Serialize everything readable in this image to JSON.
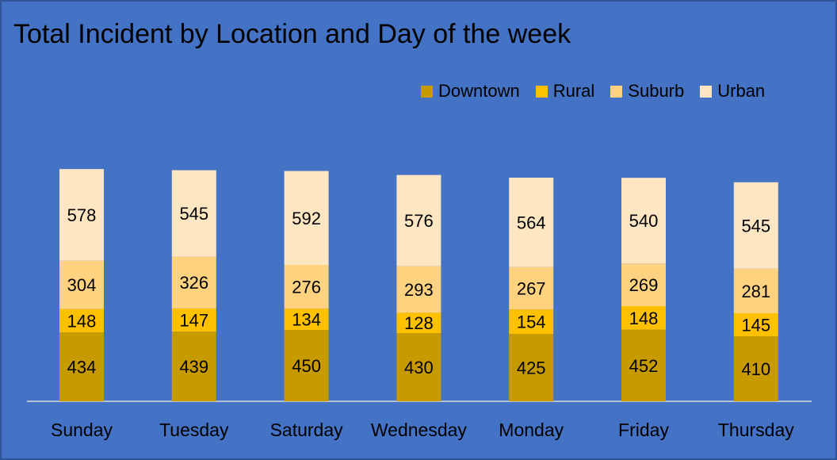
{
  "chart_data": {
    "type": "bar",
    "stacked": true,
    "title": "Total Incident by Location and Day of the week",
    "xlabel": "",
    "ylabel": "",
    "categories": [
      "Sunday",
      "Tuesday",
      "Saturday",
      "Wednesday",
      "Monday",
      "Friday",
      "Thursday"
    ],
    "series": [
      {
        "name": "Downtown",
        "color": "#c79a00",
        "values": [
          434,
          439,
          450,
          430,
          425,
          452,
          410
        ]
      },
      {
        "name": "Rural",
        "color": "#ffc000",
        "values": [
          148,
          147,
          134,
          128,
          154,
          148,
          145
        ]
      },
      {
        "name": "Suburb",
        "color": "#ffd27f",
        "values": [
          304,
          326,
          276,
          293,
          267,
          269,
          281
        ]
      },
      {
        "name": "Urban",
        "color": "#ffe6c2",
        "values": [
          578,
          545,
          592,
          576,
          564,
          540,
          545
        ]
      }
    ],
    "ylim": [
      0,
      1700
    ],
    "grid": false,
    "legend_position": "top-right",
    "background_color": "#4472c4"
  }
}
